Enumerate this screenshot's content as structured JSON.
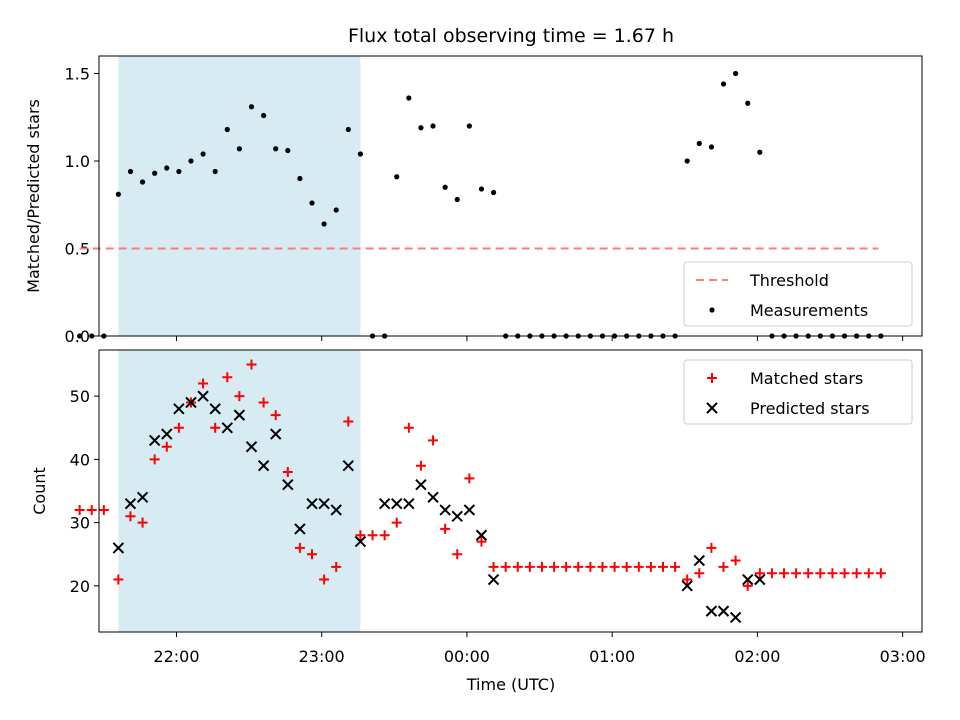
{
  "chart_data": {
    "type": "scatter",
    "title": "Flux total observing time = 1.67 h",
    "xlabel": "Time (UTC)",
    "x_ticks": [
      "22:00",
      "23:00",
      "00:00",
      "01:00",
      "02:00",
      "03:00"
    ],
    "x_range": [
      "21:28",
      "03:08"
    ],
    "shaded_interval": [
      "21:36",
      "23:16"
    ],
    "colors": {
      "shade": "#add8e6",
      "threshold": "#ff7b7b",
      "matched": "#ff0000",
      "predicted": "#000000",
      "measurements": "#000000"
    },
    "panels": [
      {
        "ylabel": "Matched/Predicted stars",
        "ylim": [
          0,
          1.6
        ],
        "y_ticks": [
          "0.0",
          "0.5",
          "1.0",
          "1.5"
        ],
        "legend": {
          "position": "lower right",
          "entries": [
            "Threshold",
            "Measurements"
          ]
        },
        "series": [
          {
            "name": "Threshold",
            "kind": "dashed-line",
            "x": [
              "21:20",
              "02:50"
            ],
            "y": [
              0.5,
              0.5
            ]
          },
          {
            "name": "Measurements",
            "kind": "dots",
            "x": [
              "21:20",
              "21:25",
              "21:30",
              "21:36",
              "21:41",
              "21:46",
              "21:51",
              "21:56",
              "22:01",
              "22:06",
              "22:11",
              "22:16",
              "22:21",
              "22:26",
              "22:31",
              "22:36",
              "22:41",
              "22:46",
              "22:51",
              "22:56",
              "23:01",
              "23:06",
              "23:11",
              "23:16",
              "23:21",
              "23:26",
              "23:31",
              "23:36",
              "23:41",
              "23:46",
              "23:51",
              "23:56",
              "00:01",
              "00:06",
              "00:11",
              "00:16",
              "00:21",
              "00:26",
              "00:31",
              "00:36",
              "00:41",
              "00:46",
              "00:51",
              "00:56",
              "01:01",
              "01:06",
              "01:11",
              "01:16",
              "01:21",
              "01:26",
              "01:31",
              "01:36",
              "01:41",
              "01:46",
              "01:51",
              "01:56",
              "02:01",
              "02:06",
              "02:11",
              "02:16",
              "02:21",
              "02:26",
              "02:31",
              "02:36",
              "02:41",
              "02:46",
              "02:51"
            ],
            "y": [
              0,
              0,
              0,
              0.81,
              0.94,
              0.88,
              0.93,
              0.96,
              0.94,
              1.0,
              1.04,
              0.94,
              1.18,
              1.07,
              1.31,
              1.26,
              1.07,
              1.06,
              0.9,
              0.76,
              0.64,
              0.72,
              1.18,
              1.04,
              0,
              0,
              0.91,
              1.36,
              1.19,
              1.2,
              0.85,
              0.78,
              1.2,
              0.84,
              0.82,
              0,
              0,
              0,
              0,
              0,
              0,
              0,
              0,
              0,
              0,
              0,
              0,
              0,
              0,
              0,
              1.0,
              1.1,
              1.08,
              1.44,
              1.5,
              1.33,
              1.05,
              0,
              0,
              0,
              0,
              0,
              0,
              0,
              0,
              0,
              0
            ]
          }
        ]
      },
      {
        "ylabel": "Count",
        "ylim": [
          12.7,
          57.3
        ],
        "y_ticks": [
          "20",
          "30",
          "40",
          "50"
        ],
        "legend": {
          "position": "upper right",
          "entries": [
            "Matched stars",
            "Predicted stars"
          ]
        },
        "series": [
          {
            "name": "Matched stars",
            "marker": "+",
            "x": [
              "21:20",
              "21:25",
              "21:30",
              "21:36",
              "21:41",
              "21:46",
              "21:51",
              "21:56",
              "22:01",
              "22:06",
              "22:11",
              "22:16",
              "22:21",
              "22:26",
              "22:31",
              "22:36",
              "22:41",
              "22:46",
              "22:51",
              "22:56",
              "23:01",
              "23:06",
              "23:11",
              "23:16",
              "23:21",
              "23:26",
              "23:31",
              "23:36",
              "23:41",
              "23:46",
              "23:51",
              "23:56",
              "00:01",
              "00:06",
              "00:11",
              "00:16",
              "00:21",
              "00:26",
              "00:31",
              "00:36",
              "00:41",
              "00:46",
              "00:51",
              "00:56",
              "01:01",
              "01:06",
              "01:11",
              "01:16",
              "01:21",
              "01:26",
              "01:31",
              "01:36",
              "01:41",
              "01:46",
              "01:51",
              "01:56",
              "02:01",
              "02:06",
              "02:11",
              "02:16",
              "02:21",
              "02:26",
              "02:31",
              "02:36",
              "02:41",
              "02:46",
              "02:51"
            ],
            "y": [
              32,
              32,
              32,
              21,
              31,
              30,
              40,
              42,
              45,
              49,
              52,
              45,
              53,
              50,
              55,
              49,
              47,
              38,
              26,
              25,
              21,
              23,
              46,
              28,
              28,
              28,
              30,
              45,
              39,
              43,
              29,
              25,
              37,
              27,
              23,
              23,
              23,
              23,
              23,
              23,
              23,
              23,
              23,
              23,
              23,
              23,
              23,
              23,
              23,
              23,
              21,
              22,
              26,
              23,
              24,
              20,
              22,
              22,
              22,
              22,
              22,
              22,
              22,
              22,
              22,
              22,
              22
            ]
          },
          {
            "name": "Predicted stars",
            "marker": "x",
            "x": [
              "21:36",
              "21:41",
              "21:46",
              "21:51",
              "21:56",
              "22:01",
              "22:06",
              "22:11",
              "22:16",
              "22:21",
              "22:26",
              "22:31",
              "22:36",
              "22:41",
              "22:46",
              "22:51",
              "22:56",
              "23:01",
              "23:06",
              "23:11",
              "23:16",
              "23:26",
              "23:31",
              "23:36",
              "23:41",
              "23:46",
              "23:51",
              "23:56",
              "00:01",
              "00:06",
              "00:11",
              "01:31",
              "01:36",
              "01:41",
              "01:46",
              "01:51",
              "01:56",
              "02:01"
            ],
            "y": [
              26,
              33,
              34,
              43,
              44,
              48,
              49,
              50,
              48,
              45,
              47,
              42,
              39,
              44,
              36,
              29,
              33,
              33,
              32,
              39,
              27,
              33,
              33,
              33,
              36,
              34,
              32,
              31,
              32,
              28,
              21,
              20,
              24,
              16,
              16,
              15,
              21,
              21
            ]
          }
        ]
      }
    ]
  }
}
